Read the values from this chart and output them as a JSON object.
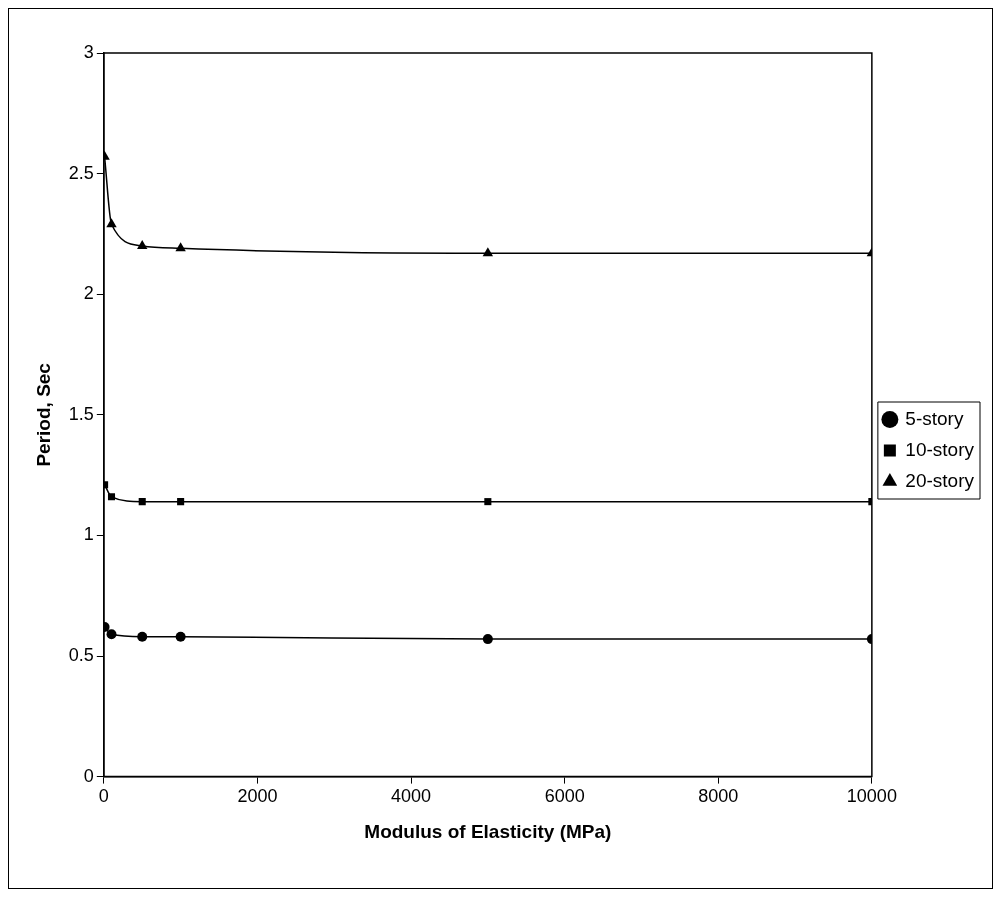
{
  "chart_data": {
    "type": "line",
    "xlabel": "Modulus of Elasticity (MPa)",
    "ylabel": "Period, Sec",
    "xlim": [
      0,
      10000
    ],
    "xticks": [
      0,
      2000,
      4000,
      6000,
      8000,
      10000
    ],
    "ylim": [
      0,
      3
    ],
    "yticks": [
      0,
      0.5,
      1,
      1.5,
      2,
      2.5,
      3
    ],
    "grid": false,
    "legend": "right",
    "line_style": "solid",
    "x": [
      10,
      100,
      500,
      1000,
      5000,
      10000
    ],
    "series": [
      {
        "name": "5-story",
        "color": "#000000",
        "marker": "circle",
        "values": [
          0.62,
          0.59,
          0.58,
          0.58,
          0.57,
          0.57
        ]
      },
      {
        "name": "10-story",
        "color": "#000000",
        "marker": "square",
        "values": [
          1.21,
          1.16,
          1.14,
          1.14,
          1.14,
          1.14
        ]
      },
      {
        "name": "20-story",
        "color": "#000000",
        "marker": "triangle",
        "values": [
          2.57,
          2.29,
          2.2,
          2.19,
          2.17,
          2.17
        ]
      }
    ]
  }
}
